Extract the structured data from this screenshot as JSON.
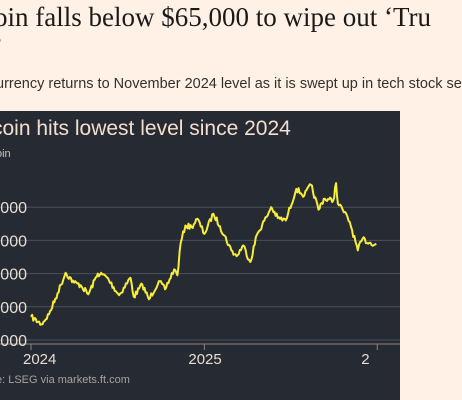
{
  "article": {
    "headline_line1": "oin falls below $65,000 to wipe out ‘Tru",
    "headline_line2": "’",
    "standfirst": "urrency returns to November 2024 level as it is swept up in tech stock se"
  },
  "chart_data": {
    "type": "line",
    "title": "coin hits lowest level since 2024",
    "unit_label": "oin",
    "y_tick_labels": [
      "000",
      "000",
      "000",
      "000",
      "000"
    ],
    "x_tick_labels": [
      "2024",
      "2025",
      "2"
    ],
    "source": "e: LSEG via markets.ft.com",
    "series": [
      {
        "x": [
          "2024-01-01",
          "2024-01-23",
          "2024-02-08",
          "2024-02-26",
          "2024-03-14",
          "2024-04-01",
          "2024-04-15",
          "2024-05-01",
          "2024-05-21",
          "2024-06-07",
          "2024-07-05",
          "2024-07-29",
          "2024-08-05",
          "2024-08-23",
          "2024-09-06",
          "2024-09-27",
          "2024-10-10",
          "2024-10-29",
          "2024-11-05",
          "2024-11-12",
          "2024-11-22",
          "2024-12-05",
          "2024-12-17",
          "2025-01-01",
          "2025-01-20",
          "2025-02-03",
          "2025-02-27",
          "2025-03-10",
          "2025-03-24",
          "2025-04-08",
          "2025-04-22",
          "2025-05-12",
          "2025-05-22",
          "2025-06-05",
          "2025-06-22",
          "2025-07-14",
          "2025-07-31",
          "2025-08-14",
          "2025-08-30",
          "2025-09-10",
          "2025-09-30",
          "2025-10-06",
          "2025-10-10",
          "2025-10-20",
          "2025-11-04",
          "2025-11-21",
          "2025-12-01",
          "2025-12-15",
          "2025-12-30"
        ],
        "y": [
          44000,
          39500,
          45500,
          58000,
          70500,
          64500,
          63000,
          57500,
          70000,
          68500,
          57000,
          67500,
          56000,
          63500,
          54500,
          65500,
          60500,
          72500,
          69000,
          88500,
          99000,
          98000,
          103000,
          94000,
          106000,
          98500,
          84000,
          80500,
          87000,
          77000,
          93500,
          104000,
          110000,
          103500,
          102000,
          121000,
          117000,
          123500,
          108500,
          115000,
          114000,
          124500,
          112000,
          108500,
          101000,
          84000,
          91000,
          88500,
          88000
        ]
      }
    ]
  },
  "colors": {
    "page_background": "#fff1e5",
    "chart_background": "#262a33",
    "series_line": "#f7ed3b",
    "gridline": "#4a4f5a"
  }
}
